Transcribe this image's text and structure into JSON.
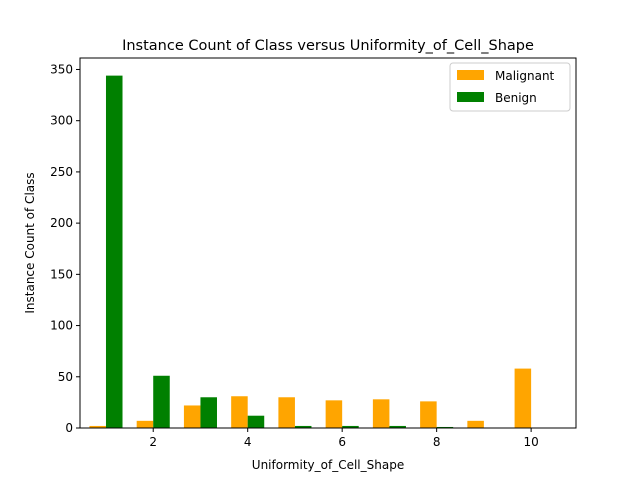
{
  "chart_data": {
    "type": "bar",
    "title": "Instance Count of Class versus Uniformity_of_Cell_Shape",
    "xlabel": "Uniformity_of_Cell_Shape",
    "ylabel": "Instance Count of Class",
    "x": [
      1,
      2,
      3,
      4,
      5,
      6,
      7,
      8,
      9,
      10
    ],
    "series": [
      {
        "name": "Malignant",
        "color": "#ffa500",
        "values": [
          2,
          7,
          22,
          31,
          30,
          27,
          28,
          26,
          7,
          58
        ]
      },
      {
        "name": "Benign",
        "color": "#008000",
        "values": [
          344,
          51,
          30,
          12,
          2,
          2,
          2,
          1,
          0,
          0
        ]
      }
    ],
    "xlim": [
      0.45,
      10.95
    ],
    "ylim": [
      0,
      361.2
    ],
    "xticks": [
      2,
      4,
      6,
      8,
      10
    ],
    "yticks": [
      0,
      50,
      100,
      150,
      200,
      250,
      300,
      350
    ],
    "grid": false,
    "legend_position": "top-right"
  }
}
